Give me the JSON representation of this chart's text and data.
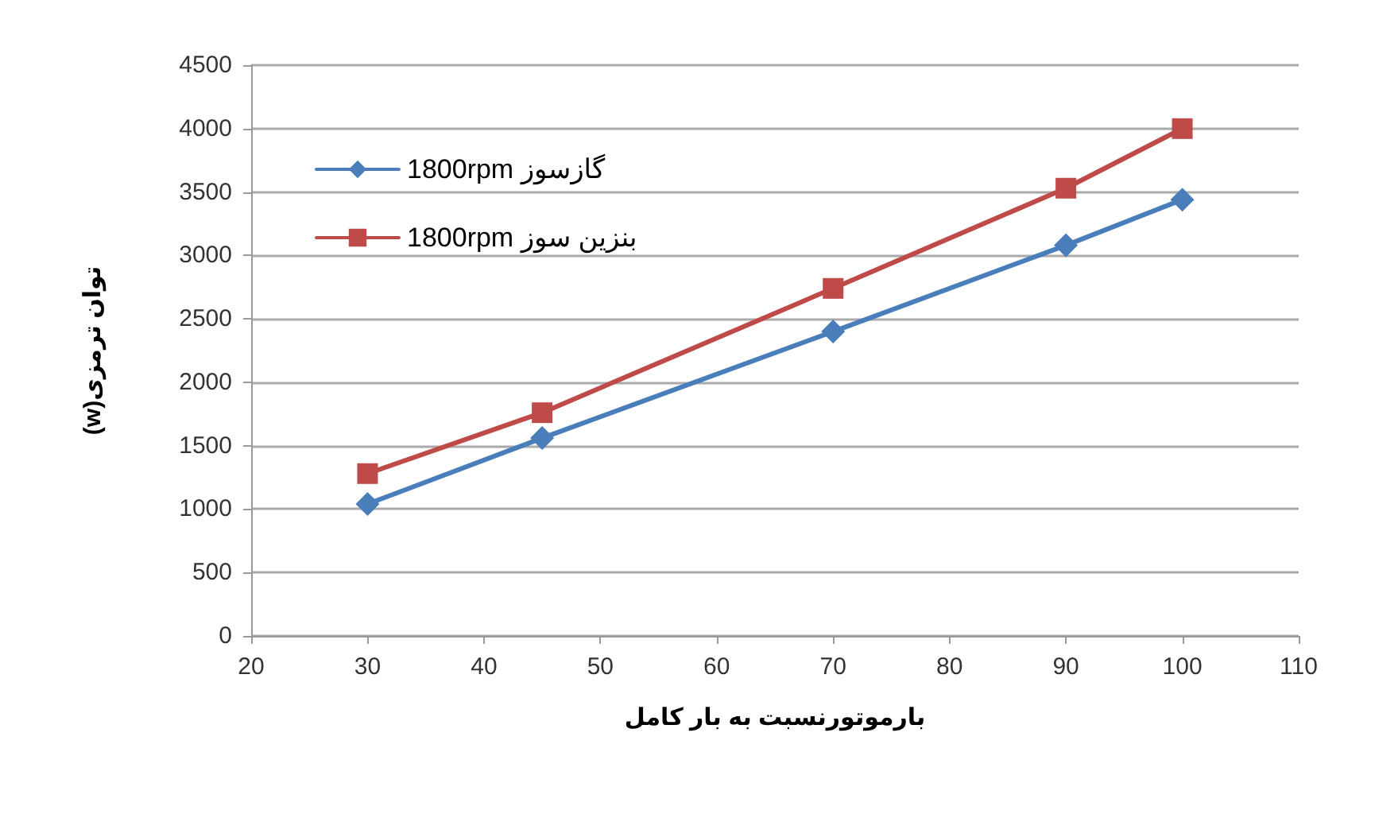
{
  "chart_data": {
    "type": "line",
    "xlabel": "بارموتورنسبت به بار کامل",
    "ylabel": "(w)توان ترمزی",
    "x": [
      30,
      45,
      70,
      90,
      100
    ],
    "series": [
      {
        "name": "1800rpm گازسوز",
        "color": "#4a7ebb",
        "marker": "diamond",
        "values": [
          1040,
          1560,
          2400,
          3080,
          3440
        ]
      },
      {
        "name": "1800rpm بنزین سوز",
        "color": "#be4b48",
        "marker": "square",
        "values": [
          1280,
          1760,
          2740,
          3530,
          4000
        ]
      }
    ],
    "xlim": [
      20,
      110
    ],
    "xticks": [
      20,
      30,
      40,
      50,
      60,
      70,
      80,
      90,
      100,
      110
    ],
    "ylim": [
      0,
      4500
    ],
    "yticks": [
      0,
      500,
      1000,
      1500,
      2000,
      2500,
      3000,
      3500,
      4000,
      4500
    ],
    "grid": "y",
    "legend": "top left",
    "line_style": "solid"
  }
}
